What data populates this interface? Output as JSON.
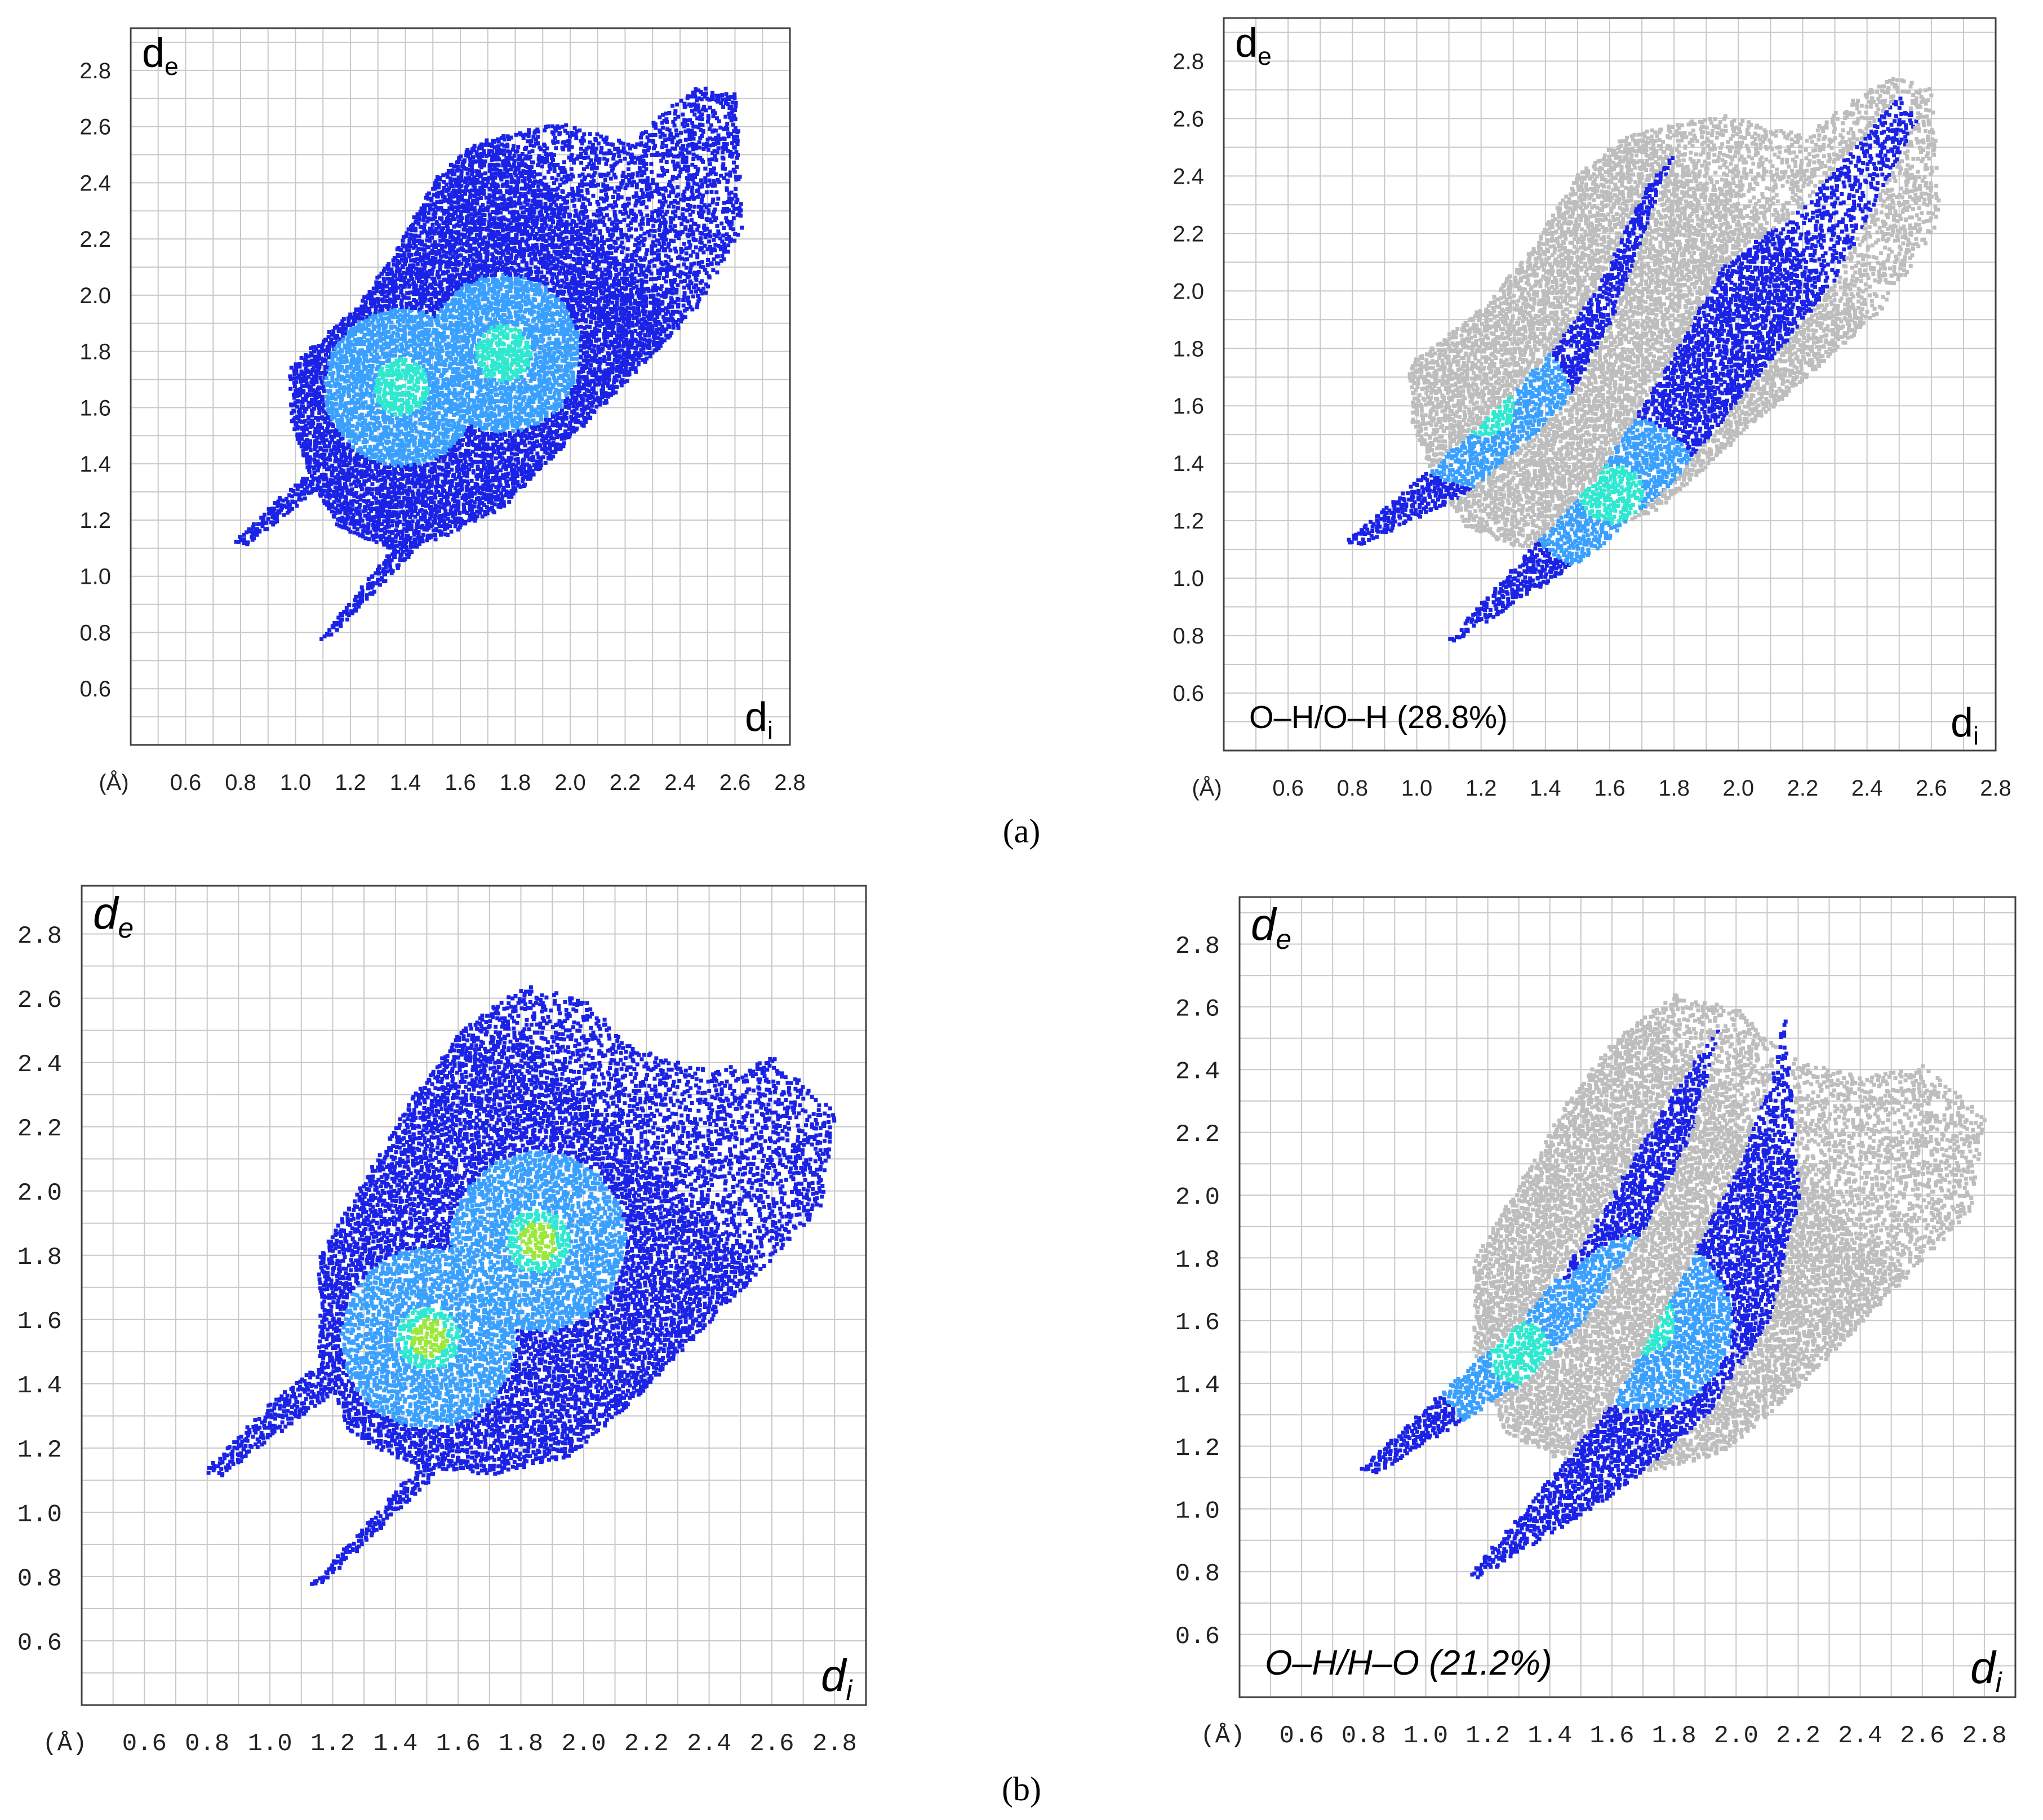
{
  "figure": {
    "panel_a_label": "(a)",
    "panel_b_label": "(b)"
  },
  "colors": {
    "grid": "#c8c8c8",
    "frame": "#404040",
    "background": "#ffffff",
    "grey_points": "#bdbdbd",
    "density_low": "#1a22e6",
    "density_mid": "#3aa0ff",
    "density_high": "#2ee8d0",
    "density_peak": "#9be83a"
  },
  "chart_data": [
    {
      "id": "a-left",
      "type": "scatter",
      "subtype": "2D fingerprint plot (density)",
      "title": "",
      "xlabel": "d",
      "xlabel_sub": "i",
      "ylabel": "d",
      "ylabel_sub": "e",
      "unit_label": "(Å)",
      "xlim": [
        0.4,
        2.8
      ],
      "ylim": [
        0.4,
        2.95
      ],
      "x_ticks": [
        "0.6",
        "0.8",
        "1.0",
        "1.2",
        "1.4",
        "1.6",
        "1.8",
        "2.0",
        "2.2",
        "2.4",
        "2.6",
        "2.8"
      ],
      "y_ticks": [
        "0.6",
        "0.8",
        "1.0",
        "1.2",
        "1.4",
        "1.6",
        "1.8",
        "2.0",
        "2.2",
        "2.4",
        "2.6",
        "2.8"
      ],
      "annotation": "",
      "highlight_all": true,
      "density_peaks": [
        [
          1.75,
          1.8
        ],
        [
          1.38,
          1.68
        ]
      ],
      "regions": [
        {
          "name": "main body",
          "polygon": [
            [
              0.97,
              1.75
            ],
            [
              1.2,
              1.95
            ],
            [
              1.35,
              2.15
            ],
            [
              1.5,
              2.42
            ],
            [
              1.65,
              2.55
            ],
            [
              1.95,
              2.62
            ],
            [
              2.2,
              2.55
            ],
            [
              2.45,
              2.75
            ],
            [
              2.6,
              2.72
            ],
            [
              2.62,
              2.25
            ],
            [
              2.45,
              1.95
            ],
            [
              2.2,
              1.7
            ],
            [
              1.95,
              1.45
            ],
            [
              1.75,
              1.25
            ],
            [
              1.55,
              1.15
            ],
            [
              1.35,
              1.1
            ],
            [
              1.15,
              1.18
            ],
            [
              1.05,
              1.35
            ],
            [
              0.98,
              1.55
            ]
          ]
        },
        {
          "name": "spike 1",
          "polygon": [
            [
              0.77,
              1.13
            ],
            [
              0.95,
              1.3
            ],
            [
              1.1,
              1.42
            ],
            [
              1.2,
              1.48
            ],
            [
              1.12,
              1.35
            ],
            [
              0.82,
              1.12
            ]
          ]
        },
        {
          "name": "spike 2",
          "polygon": [
            [
              1.08,
              0.78
            ],
            [
              1.3,
              1.05
            ],
            [
              1.5,
              1.3
            ],
            [
              1.6,
              1.4
            ],
            [
              1.45,
              1.12
            ],
            [
              1.12,
              0.79
            ]
          ]
        }
      ]
    },
    {
      "id": "a-right",
      "type": "scatter",
      "subtype": "2D fingerprint plot (decomposed)",
      "title": "",
      "xlabel": "d",
      "xlabel_sub": "i",
      "ylabel": "d",
      "ylabel_sub": "e",
      "unit_label": "(Å)",
      "xlim": [
        0.4,
        2.8
      ],
      "ylim": [
        0.4,
        2.95
      ],
      "x_ticks": [
        "0.6",
        "0.8",
        "1.0",
        "1.2",
        "1.4",
        "1.6",
        "1.8",
        "2.0",
        "2.2",
        "2.4",
        "2.6",
        "2.8"
      ],
      "y_ticks": [
        "0.6",
        "0.8",
        "1.0",
        "1.2",
        "1.4",
        "1.6",
        "1.8",
        "2.0",
        "2.2",
        "2.4",
        "2.6",
        "2.8"
      ],
      "annotation": "O–H/O–H (28.8%)",
      "contact": "O–H/O–H",
      "percentage": 28.8,
      "highlight_all": false,
      "density_peaks": [
        [
          1.2,
          1.6
        ],
        [
          1.6,
          1.3
        ]
      ],
      "regions": [
        {
          "name": "full print (grey)",
          "polygon": [
            [
              0.97,
              1.75
            ],
            [
              1.2,
              1.95
            ],
            [
              1.35,
              2.15
            ],
            [
              1.5,
              2.42
            ],
            [
              1.65,
              2.55
            ],
            [
              1.95,
              2.62
            ],
            [
              2.2,
              2.55
            ],
            [
              2.45,
              2.75
            ],
            [
              2.6,
              2.72
            ],
            [
              2.62,
              2.25
            ],
            [
              2.45,
              1.95
            ],
            [
              2.2,
              1.7
            ],
            [
              1.95,
              1.45
            ],
            [
              1.75,
              1.25
            ],
            [
              1.55,
              1.15
            ],
            [
              1.35,
              1.1
            ],
            [
              1.15,
              1.18
            ],
            [
              1.05,
              1.35
            ],
            [
              0.98,
              1.55
            ]
          ]
        },
        {
          "name": "O-H spike (upper-left)",
          "polygon": [
            [
              0.77,
              1.13
            ],
            [
              1.0,
              1.35
            ],
            [
              1.2,
              1.55
            ],
            [
              1.4,
              1.78
            ],
            [
              1.55,
              2.0
            ],
            [
              1.7,
              2.35
            ],
            [
              1.8,
              2.5
            ],
            [
              1.6,
              1.9
            ],
            [
              1.45,
              1.6
            ],
            [
              1.3,
              1.45
            ],
            [
              1.15,
              1.3
            ],
            [
              0.82,
              1.12
            ]
          ]
        },
        {
          "name": "H-O spike (lower-right)",
          "polygon": [
            [
              1.08,
              0.78
            ],
            [
              1.3,
              1.05
            ],
            [
              1.55,
              1.35
            ],
            [
              1.75,
              1.7
            ],
            [
              1.95,
              2.1
            ],
            [
              2.2,
              2.3
            ],
            [
              2.5,
              2.7
            ],
            [
              2.55,
              2.6
            ],
            [
              2.3,
              2.05
            ],
            [
              2.05,
              1.7
            ],
            [
              1.8,
              1.35
            ],
            [
              1.55,
              1.1
            ],
            [
              1.12,
              0.79
            ]
          ]
        }
      ]
    },
    {
      "id": "b-left",
      "type": "scatter",
      "subtype": "2D fingerprint plot (density)",
      "title": "",
      "xlabel": "d",
      "xlabel_sub": "i",
      "ylabel": "d",
      "ylabel_sub": "e",
      "unit_label": "(Å)",
      "xlim": [
        0.4,
        2.9
      ],
      "ylim": [
        0.4,
        2.95
      ],
      "x_ticks": [
        "0.6",
        "0.8",
        "1.0",
        "1.2",
        "1.4",
        "1.6",
        "1.8",
        "2.0",
        "2.2",
        "2.4",
        "2.6",
        "2.8"
      ],
      "y_ticks": [
        "0.6",
        "0.8",
        "1.0",
        "1.2",
        "1.4",
        "1.6",
        "1.8",
        "2.0",
        "2.2",
        "2.4",
        "2.6",
        "2.8"
      ],
      "annotation": "",
      "highlight_all": true,
      "density_peaks": [
        [
          1.85,
          1.85
        ],
        [
          1.5,
          1.55
        ]
      ],
      "regions": [
        {
          "name": "main body",
          "polygon": [
            [
              1.15,
              1.8
            ],
            [
              1.3,
              2.05
            ],
            [
              1.45,
              2.3
            ],
            [
              1.6,
              2.5
            ],
            [
              1.8,
              2.65
            ],
            [
              2.0,
              2.6
            ],
            [
              2.15,
              2.45
            ],
            [
              2.4,
              2.38
            ],
            [
              2.6,
              2.42
            ],
            [
              2.8,
              2.25
            ],
            [
              2.75,
              1.95
            ],
            [
              2.55,
              1.75
            ],
            [
              2.35,
              1.55
            ],
            [
              2.15,
              1.35
            ],
            [
              1.95,
              1.18
            ],
            [
              1.7,
              1.12
            ],
            [
              1.45,
              1.15
            ],
            [
              1.25,
              1.25
            ],
            [
              1.15,
              1.5
            ]
          ]
        },
        {
          "name": "spike 1",
          "polygon": [
            [
              0.78,
              1.13
            ],
            [
              1.0,
              1.35
            ],
            [
              1.2,
              1.5
            ],
            [
              1.3,
              1.55
            ],
            [
              1.2,
              1.38
            ],
            [
              0.84,
              1.12
            ]
          ]
        },
        {
          "name": "spike 2",
          "polygon": [
            [
              1.12,
              0.78
            ],
            [
              1.35,
              1.02
            ],
            [
              1.55,
              1.25
            ],
            [
              1.65,
              1.35
            ],
            [
              1.5,
              1.1
            ],
            [
              1.17,
              0.79
            ]
          ]
        }
      ]
    },
    {
      "id": "b-right",
      "type": "scatter",
      "subtype": "2D fingerprint plot (decomposed)",
      "title": "",
      "xlabel": "d",
      "xlabel_sub": "i",
      "ylabel": "d",
      "ylabel_sub": "e",
      "unit_label": "(Å)",
      "xlim": [
        0.4,
        2.9
      ],
      "ylim": [
        0.4,
        2.95
      ],
      "x_ticks": [
        "0.6",
        "0.8",
        "1.0",
        "1.2",
        "1.4",
        "1.6",
        "1.8",
        "2.0",
        "2.2",
        "2.4",
        "2.6",
        "2.8"
      ],
      "y_ticks": [
        "0.6",
        "0.8",
        "1.0",
        "1.2",
        "1.4",
        "1.6",
        "1.8",
        "2.0",
        "2.2",
        "2.4",
        "2.6",
        "2.8"
      ],
      "annotation": "O–H/H–O (21.2%)",
      "contact": "O–H/H–O",
      "percentage": 21.2,
      "highlight_all": false,
      "density_peaks": [
        [
          1.3,
          1.5
        ],
        [
          1.7,
          1.6
        ]
      ],
      "regions": [
        {
          "name": "full print (grey)",
          "polygon": [
            [
              1.15,
              1.8
            ],
            [
              1.3,
              2.05
            ],
            [
              1.45,
              2.3
            ],
            [
              1.6,
              2.5
            ],
            [
              1.8,
              2.65
            ],
            [
              2.0,
              2.6
            ],
            [
              2.15,
              2.45
            ],
            [
              2.4,
              2.38
            ],
            [
              2.6,
              2.42
            ],
            [
              2.8,
              2.25
            ],
            [
              2.75,
              1.95
            ],
            [
              2.55,
              1.75
            ],
            [
              2.35,
              1.55
            ],
            [
              2.15,
              1.35
            ],
            [
              1.95,
              1.18
            ],
            [
              1.7,
              1.12
            ],
            [
              1.45,
              1.15
            ],
            [
              1.25,
              1.25
            ],
            [
              1.15,
              1.5
            ]
          ]
        },
        {
          "name": "O-H spike (upper-left)",
          "polygon": [
            [
              0.78,
              1.13
            ],
            [
              1.05,
              1.38
            ],
            [
              1.3,
              1.6
            ],
            [
              1.5,
              1.85
            ],
            [
              1.65,
              2.1
            ],
            [
              1.8,
              2.35
            ],
            [
              1.95,
              2.55
            ],
            [
              1.85,
              2.2
            ],
            [
              1.7,
              1.9
            ],
            [
              1.5,
              1.6
            ],
            [
              1.3,
              1.4
            ],
            [
              0.84,
              1.12
            ]
          ]
        },
        {
          "name": "H-O spike (lower-right)",
          "polygon": [
            [
              1.12,
              0.78
            ],
            [
              1.35,
              1.05
            ],
            [
              1.6,
              1.35
            ],
            [
              1.8,
              1.7
            ],
            [
              2.0,
              2.1
            ],
            [
              2.1,
              2.35
            ],
            [
              2.15,
              2.6
            ],
            [
              2.2,
              2.0
            ],
            [
              2.1,
              1.6
            ],
            [
              1.9,
              1.3
            ],
            [
              1.6,
              1.05
            ],
            [
              1.17,
              0.79
            ]
          ]
        }
      ]
    }
  ]
}
